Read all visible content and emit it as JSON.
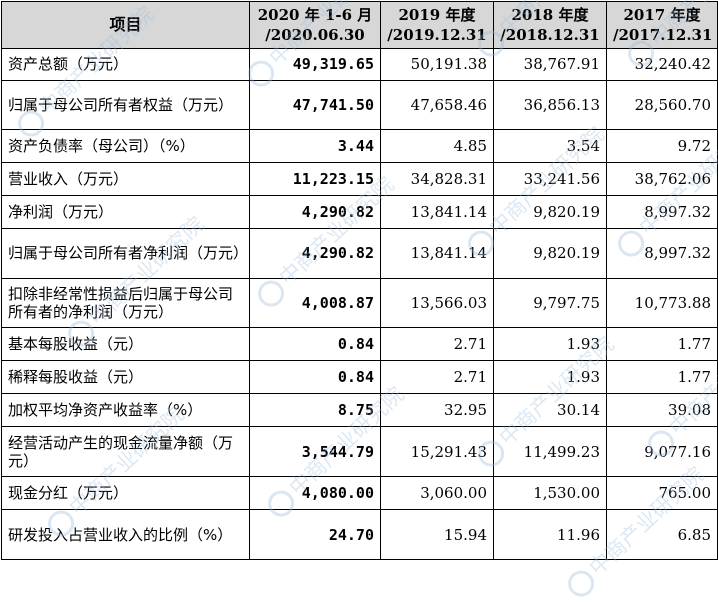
{
  "headers": [
    "项目",
    "2020 年 1-6 月 /2020.06.30",
    "2019 年度 /2019.12.31",
    "2018 年度 /2018.12.31",
    "2017 年度 /2017.12.31"
  ],
  "header_lines": [
    [
      "项目"
    ],
    [
      "2020 年 1-6 月",
      "/2020.06.30"
    ],
    [
      "2019 年度",
      "/2019.12.31"
    ],
    [
      "2018 年度",
      "/2018.12.31"
    ],
    [
      "2017 年度",
      "/2017.12.31"
    ]
  ],
  "rows": [
    {
      "label": "资产总额（万元）",
      "values": [
        "49,319.65",
        "50,191.38",
        "38,767.91",
        "32,240.42"
      ]
    },
    {
      "label": "归属于母公司所有者权益（万元）",
      "values": [
        "47,741.50",
        "47,658.46",
        "36,856.13",
        "28,560.70"
      ]
    },
    {
      "label": "资产负债率（母公司）（%）",
      "values": [
        "3.44",
        "4.85",
        "3.54",
        "9.72"
      ]
    },
    {
      "label": "营业收入（万元）",
      "values": [
        "11,223.15",
        "34,828.31",
        "33,241.56",
        "38,762.06"
      ]
    },
    {
      "label": "净利润（万元）",
      "values": [
        "4,290.82",
        "13,841.14",
        "9,820.19",
        "8,997.32"
      ]
    },
    {
      "label": "归属于母公司所有者净利润（万元）",
      "values": [
        "4,290.82",
        "13,841.14",
        "9,820.19",
        "8,997.32"
      ]
    },
    {
      "label": "扣除非经常性损益后归属于母公司所有者的净利润（万元）",
      "values": [
        "4,008.87",
        "13,566.03",
        "9,797.75",
        "10,773.88"
      ]
    },
    {
      "label": "基本每股收益（元）",
      "values": [
        "0.84",
        "2.71",
        "1.93",
        "1.77"
      ]
    },
    {
      "label": "稀释每股收益（元）",
      "values": [
        "0.84",
        "2.71",
        "1.93",
        "1.77"
      ]
    },
    {
      "label": "加权平均净资产收益率（%）",
      "values": [
        "8.75",
        "32.95",
        "30.14",
        "39.08"
      ]
    },
    {
      "label": "经营活动产生的现金流量净额（万元）",
      "values": [
        "3,544.79",
        "15,291.43",
        "11,499.23",
        "9,077.16"
      ]
    },
    {
      "label": "现金分红（万元）",
      "values": [
        "4,080.00",
        "3,060.00",
        "1,530.00",
        "765.00"
      ]
    },
    {
      "label": "研发投入占营业收入的比例（%）",
      "values": [
        "24.70",
        "15.94",
        "11.96",
        "6.85"
      ]
    }
  ],
  "watermark_text": "中商产业研究院",
  "colors": {
    "header_bg": "#d7d7d7",
    "border": "#000000",
    "watermark": "#96b9dc"
  }
}
